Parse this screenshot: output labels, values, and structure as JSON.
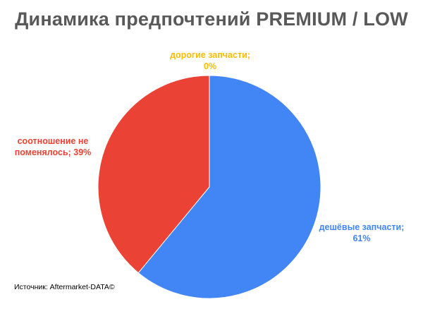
{
  "chart_data": {
    "type": "pie",
    "title": "Динамика предпочтений PREMIUM / LOW",
    "slices": [
      {
        "category": "дешёвые запчасти",
        "value": 61,
        "label_lines": [
          "дешёвые запчасти;",
          "61%"
        ],
        "color": "#4285F4"
      },
      {
        "category": "соотношение не поменялось",
        "value": 39,
        "label_lines": [
          "соотношение не",
          "поменялось; 39%"
        ],
        "color": "#EA4335"
      },
      {
        "category": "дорогие запчасти",
        "value": 0,
        "label_lines": [
          "дорогие запчасти;",
          "0%"
        ],
        "color": "#FBBC04"
      }
    ],
    "legend": "none"
  },
  "source": "Источник: Aftermarket-DATA©"
}
